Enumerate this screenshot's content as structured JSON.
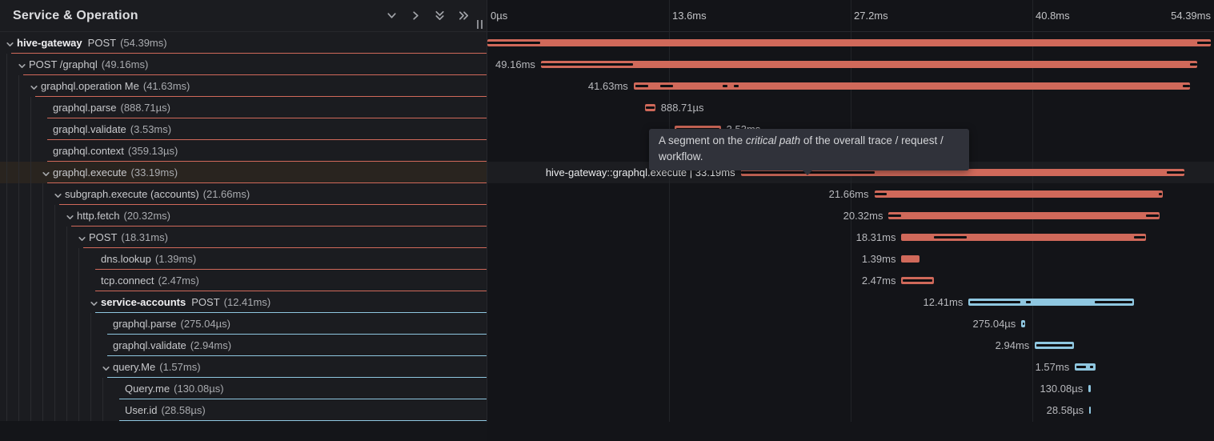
{
  "header": {
    "title": "Service & Operation",
    "icons": [
      "chevron-down",
      "chevron-right",
      "double-chevron-down",
      "double-chevron-right"
    ]
  },
  "colors": {
    "red": "#d0695a",
    "blue": "#8fc7e0",
    "critical_path": "#0e0f12"
  },
  "timeline": {
    "ticks": [
      {
        "label": "0µs",
        "pct": 0,
        "align": "left"
      },
      {
        "label": "13.6ms",
        "pct": 25,
        "align": "left"
      },
      {
        "label": "27.2ms",
        "pct": 50,
        "align": "left"
      },
      {
        "label": "40.8ms",
        "pct": 75,
        "align": "left"
      },
      {
        "label": "54.39ms",
        "pct": 100,
        "align": "right"
      }
    ]
  },
  "tooltip": {
    "prefix": "A segment on the ",
    "emphasis": "critical path",
    "suffix": " of the overall trace / request / workflow."
  },
  "spans": [
    {
      "service": "hive-gateway",
      "name": "POST",
      "duration": "54.39ms",
      "level": 0,
      "color": "red",
      "expandable": true,
      "bar": {
        "start": 0,
        "end": 99.56,
        "label": "",
        "side": "left",
        "critical": [
          [
            0,
            7.26
          ],
          [
            97.69,
            99.56
          ]
        ]
      }
    },
    {
      "name": "POST /graphql",
      "duration": "49.16ms",
      "level": 1,
      "color": "red",
      "expandable": true,
      "bar": {
        "start": 7.37,
        "end": 97.69,
        "label": "49.16ms",
        "side": "left",
        "critical": [
          [
            7.37,
            20.02
          ],
          [
            96.7,
            97.69
          ]
        ]
      }
    },
    {
      "name": "graphql.operation Me",
      "duration": "41.63ms",
      "level": 2,
      "color": "red",
      "expandable": true,
      "bar": {
        "start": 20.13,
        "end": 96.7,
        "label": "41.63ms",
        "side": "left",
        "critical": [
          [
            20.35,
            22.11
          ],
          [
            23.76,
            25.52
          ],
          [
            32.34,
            33.0
          ],
          [
            33.88,
            34.54
          ],
          [
            95.71,
            96.7
          ]
        ]
      }
    },
    {
      "name": "graphql.parse",
      "duration": "888.71µs",
      "level": 3,
      "color": "red",
      "expandable": false,
      "bar": {
        "start": 21.67,
        "end": 23.1,
        "label": "888.71µs",
        "side": "right",
        "critical": [
          [
            21.78,
            22.99
          ]
        ]
      }
    },
    {
      "name": "graphql.validate",
      "duration": "3.53ms",
      "level": 3,
      "color": "red",
      "expandable": false,
      "bar": {
        "start": 25.74,
        "end": 32.12,
        "label": "3.53ms",
        "side": "right",
        "critical": [
          [
            25.96,
            31.9
          ]
        ]
      }
    },
    {
      "name": "graphql.context",
      "duration": "359.13µs",
      "level": 3,
      "color": "red",
      "expandable": false,
      "bar": {
        "start": 32.01,
        "end": 32.78,
        "label": "359.13µs",
        "side": "left",
        "critical": []
      }
    },
    {
      "name": "graphql.execute",
      "duration": "33.19ms",
      "level": 3,
      "color": "red",
      "expandable": true,
      "hover": true,
      "bar": {
        "start": 34.87,
        "end": 95.93,
        "label": "hive-gateway::graphql.execute | 33.19ms",
        "side": "left",
        "critical": [
          [
            34.87,
            53.36
          ],
          [
            93.51,
            95.93
          ]
        ]
      }
    },
    {
      "name": "subgraph.execute (accounts)",
      "duration": "21.66ms",
      "level": 4,
      "color": "red",
      "expandable": true,
      "bar": {
        "start": 53.25,
        "end": 92.96,
        "label": "21.66ms",
        "side": "left",
        "critical": [
          [
            53.25,
            55.01
          ],
          [
            92.41,
            92.85
          ]
        ]
      }
    },
    {
      "name": "http.fetch",
      "duration": "20.32ms",
      "level": 5,
      "color": "red",
      "expandable": true,
      "bar": {
        "start": 55.23,
        "end": 92.52,
        "label": "20.32ms",
        "side": "left",
        "critical": [
          [
            55.23,
            56.99
          ],
          [
            90.65,
            92.41
          ]
        ]
      }
    },
    {
      "name": "POST",
      "duration": "18.31ms",
      "level": 6,
      "color": "red",
      "expandable": true,
      "bar": {
        "start": 56.99,
        "end": 90.65,
        "label": "18.31ms",
        "side": "left",
        "critical": [
          [
            61.5,
            66.01
          ],
          [
            89.0,
            90.54
          ]
        ]
      }
    },
    {
      "name": "dns.lookup",
      "duration": "1.39ms",
      "level": 7,
      "color": "red",
      "expandable": false,
      "bar": {
        "start": 56.99,
        "end": 59.52,
        "label": "1.39ms",
        "side": "left",
        "critical": []
      }
    },
    {
      "name": "tcp.connect",
      "duration": "2.47ms",
      "level": 7,
      "color": "red",
      "expandable": false,
      "bar": {
        "start": 56.99,
        "end": 61.5,
        "label": "2.47ms",
        "side": "left",
        "critical": [
          [
            57.21,
            61.28
          ]
        ]
      }
    },
    {
      "service": "service-accounts",
      "name": "POST",
      "duration": "12.41ms",
      "level": 7,
      "color": "blue",
      "expandable": true,
      "bar": {
        "start": 66.23,
        "end": 89.0,
        "label": "12.41ms",
        "side": "left",
        "critical": [
          [
            66.45,
            73.38
          ],
          [
            74.15,
            74.81
          ],
          [
            83.61,
            88.78
          ]
        ]
      }
    },
    {
      "name": "graphql.parse",
      "duration": "275.04µs",
      "level": 8,
      "color": "blue",
      "expandable": false,
      "bar": {
        "start": 73.49,
        "end": 74.04,
        "label": "275.04µs",
        "side": "left",
        "critical": [
          [
            73.65,
            73.87
          ]
        ]
      }
    },
    {
      "name": "graphql.validate",
      "duration": "2.94ms",
      "level": 8,
      "color": "blue",
      "expandable": false,
      "bar": {
        "start": 75.36,
        "end": 80.75,
        "label": "2.94ms",
        "side": "left",
        "critical": [
          [
            75.58,
            80.53
          ]
        ]
      }
    },
    {
      "name": "query.Me",
      "duration": "1.57ms",
      "level": 8,
      "color": "blue",
      "expandable": true,
      "bar": {
        "start": 80.86,
        "end": 83.72,
        "label": "1.57ms",
        "side": "left",
        "critical": [
          [
            81.08,
            82.4
          ],
          [
            82.95,
            83.39
          ]
        ]
      }
    },
    {
      "name": "Query.me",
      "duration": "130.08µs",
      "level": 9,
      "color": "blue",
      "expandable": false,
      "bar": {
        "start": 82.73,
        "end": 83.0,
        "label": "130.08µs",
        "side": "left",
        "critical": []
      }
    },
    {
      "name": "User.id",
      "duration": "28.58µs",
      "level": 9,
      "color": "blue",
      "expandable": false,
      "bar": {
        "start": 82.84,
        "end": 83.06,
        "label": "28.58µs",
        "side": "left",
        "critical": []
      }
    }
  ]
}
